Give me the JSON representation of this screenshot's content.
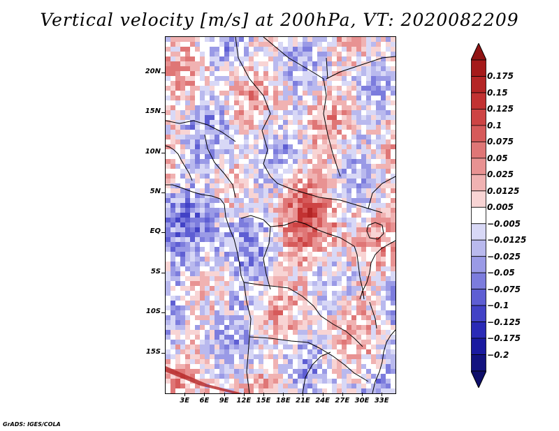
{
  "title": "Vertical velocity [m/s] at 200hPa, VT: 2020082209",
  "map": {
    "lat_range": [
      -20,
      24.5
    ],
    "lon_range": [
      0,
      35
    ],
    "y_ticks": [
      "20N",
      "15N",
      "10N",
      "5N",
      "EQ",
      "5S",
      "10S",
      "15S"
    ],
    "y_tick_values": [
      20,
      15,
      10,
      5,
      0,
      -5,
      -10,
      -15
    ],
    "x_ticks": [
      "3E",
      "6E",
      "9E",
      "12E",
      "15E",
      "18E",
      "21E",
      "24E",
      "27E",
      "30E",
      "33E"
    ],
    "x_tick_values": [
      3,
      6,
      9,
      12,
      15,
      18,
      21,
      24,
      27,
      30,
      33
    ]
  },
  "colorbar": {
    "labels": [
      "0.175",
      "0.15",
      "0.125",
      "0.1",
      "0.075",
      "0.05",
      "0.025",
      "0.0125",
      "0.005",
      "-0.005",
      "-0.0125",
      "-0.025",
      "-0.05",
      "-0.075",
      "-0.1",
      "-0.125",
      "-0.175",
      "-0.2"
    ],
    "colors": [
      "#a51a1a",
      "#b42525",
      "#c23232",
      "#cd4444",
      "#d65a5a",
      "#df7676",
      "#e89292",
      "#f0b2b2",
      "#f8d4d4",
      "#ffffff",
      "#d8d8f6",
      "#b9b9ee",
      "#9a9ae6",
      "#7c7cdd",
      "#5e5ed3",
      "#4242c6",
      "#2a2ab6",
      "#1a1aa0",
      "#12127f"
    ],
    "top_color": "#901414",
    "bottom_color": "#0e0e6a"
  },
  "credit": "GrADS: IGES/COLA"
}
